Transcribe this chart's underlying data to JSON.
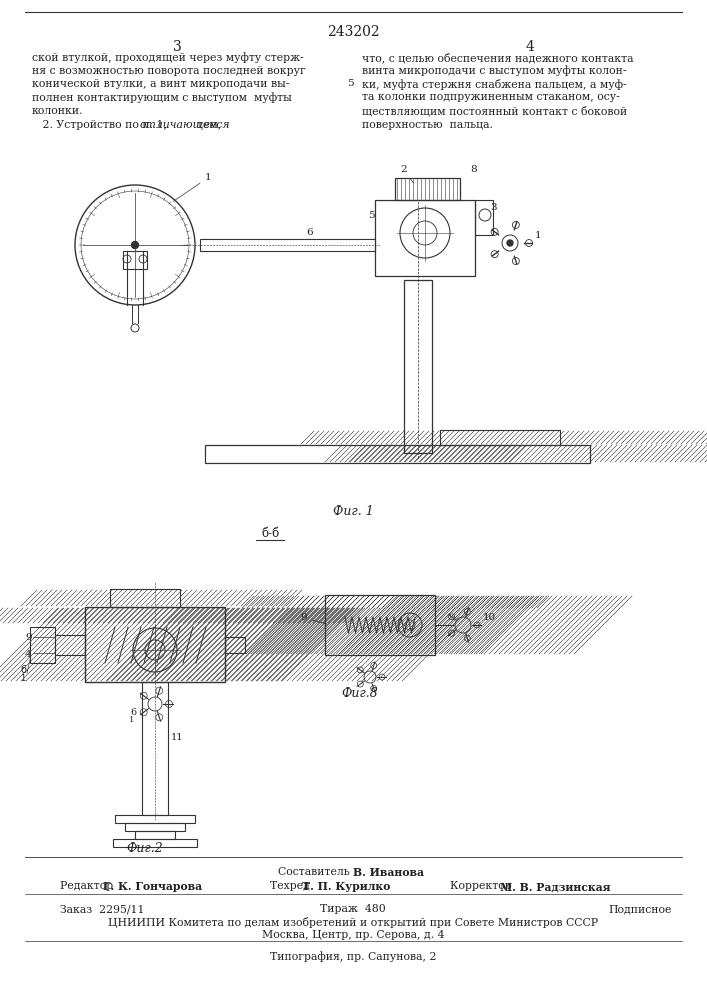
{
  "patent_number": "243202",
  "page_left": "3",
  "page_right": "4",
  "col1_lines": [
    "ской втулкой, проходящей через муфту стерж-",
    "ня с возможностью поворота последней вокруг",
    "конической втулки, а винт микроподачи вы-",
    "полнен контактирующим с выступом  муфты",
    "колонки.",
    "   2. Устройство по п. 1, отличающееся  тем,"
  ],
  "col1_italic_word": "отличающееся",
  "col2_lines": [
    "что, с целью обеспечения надежного контакта",
    "винта микроподачи с выступом муфты колон-",
    "ки, муфта стержня снабжена пальцем, а муф-",
    "та колонки подпружиненным стаканом, осу-",
    "ществляющим постоянный контакт с боковой",
    "поверхностью  пальца."
  ],
  "line_5_marker": "5",
  "fig1_caption": "Фиг. 1",
  "fig2_caption": "Фиг.2",
  "fig3_caption": "Фиг.8",
  "section_bb": "б-б",
  "footer_composer": "Составитель В. Иванова",
  "footer_editor_label": "Редактор",
  "footer_editor_name": "Г. К. Гончарова",
  "footer_tech_label": "Техред",
  "footer_tech_name": "Т. П. Курилко",
  "footer_corr_label": "Корректор",
  "footer_corr_name": "М. В. Радзинская",
  "footer_order": "Заказ  2295/11",
  "footer_circ": "Тираж  480",
  "footer_sub": "Подписное",
  "footer_org": "ЦНИИПИ Комитета по делам изобретений и открытий при Совете Министров СССР",
  "footer_addr": "Москва, Центр, пр. Серова, д. 4",
  "footer_print": "Типография, пр. Сапунова, 2",
  "bg": "#ffffff",
  "fg": "#222222",
  "lc": "#333333"
}
